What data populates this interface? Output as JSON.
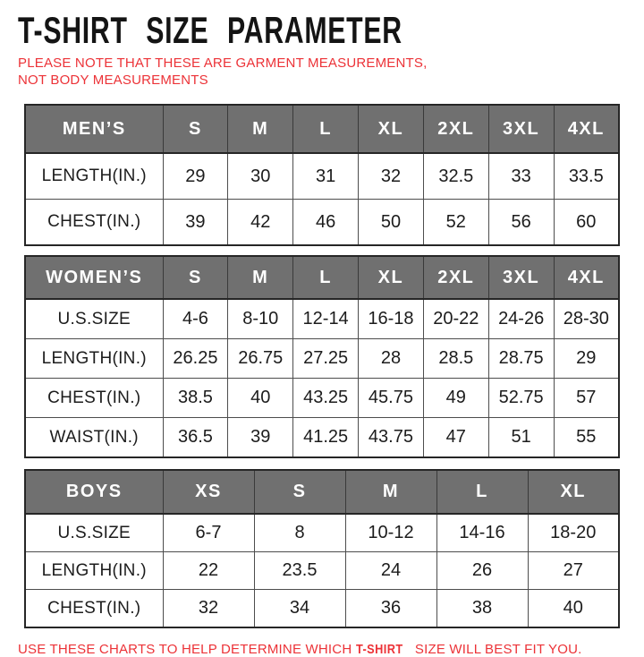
{
  "page": {
    "title": "T-SHIRT SIZE PARAMETER",
    "subtitle": "PLEASE NOTE THAT THESE ARE GARMENT MEASUREMENTS, NOT BODY MEASUREMENTS",
    "footer": {
      "prefix": "USE THESE CHARTS TO HELP DETERMINE WHICH ",
      "emphasis": "T-SHIRT",
      "suffix": " SIZE WILL BEST FIT YOU."
    }
  },
  "colors": {
    "accent_red": "#ec3237",
    "header_gray": "#707070",
    "border_dark": "#262626",
    "text_dark": "#1c1c1c"
  },
  "chart_data": [
    {
      "type": "table",
      "name": "mens-sizes",
      "columns": [
        "MEN’S",
        "S",
        "M",
        "L",
        "XL",
        "2XL",
        "3XL",
        "4XL"
      ],
      "rows": [
        {
          "label": "LENGTH(IN.)",
          "values": [
            "29",
            "30",
            "31",
            "32",
            "32.5",
            "33",
            "33.5"
          ]
        },
        {
          "label": "CHEST(IN.)",
          "values": [
            "39",
            "42",
            "46",
            "50",
            "52",
            "56",
            "60"
          ]
        }
      ]
    },
    {
      "type": "table",
      "name": "womens-sizes",
      "columns": [
        "WOMEN’S",
        "S",
        "M",
        "L",
        "XL",
        "2XL",
        "3XL",
        "4XL"
      ],
      "rows": [
        {
          "label": "U.S.SIZE",
          "values": [
            "4-6",
            "8-10",
            "12-14",
            "16-18",
            "20-22",
            "24-26",
            "28-30"
          ]
        },
        {
          "label": "LENGTH(IN.)",
          "values": [
            "26.25",
            "26.75",
            "27.25",
            "28",
            "28.5",
            "28.75",
            "29"
          ]
        },
        {
          "label": "CHEST(IN.)",
          "values": [
            "38.5",
            "40",
            "43.25",
            "45.75",
            "49",
            "52.75",
            "57"
          ]
        },
        {
          "label": "WAIST(IN.)",
          "values": [
            "36.5",
            "39",
            "41.25",
            "43.75",
            "47",
            "51",
            "55"
          ]
        }
      ]
    },
    {
      "type": "table",
      "name": "boys-sizes",
      "columns": [
        "BOYS",
        "XS",
        "S",
        "M",
        "L",
        "XL"
      ],
      "rows": [
        {
          "label": "U.S.SIZE",
          "values": [
            "6-7",
            "8",
            "10-12",
            "14-16",
            "18-20"
          ]
        },
        {
          "label": "LENGTH(IN.)",
          "values": [
            "22",
            "23.5",
            "24",
            "26",
            "27"
          ]
        },
        {
          "label": "CHEST(IN.)",
          "values": [
            "32",
            "34",
            "36",
            "38",
            "40"
          ]
        }
      ]
    }
  ]
}
